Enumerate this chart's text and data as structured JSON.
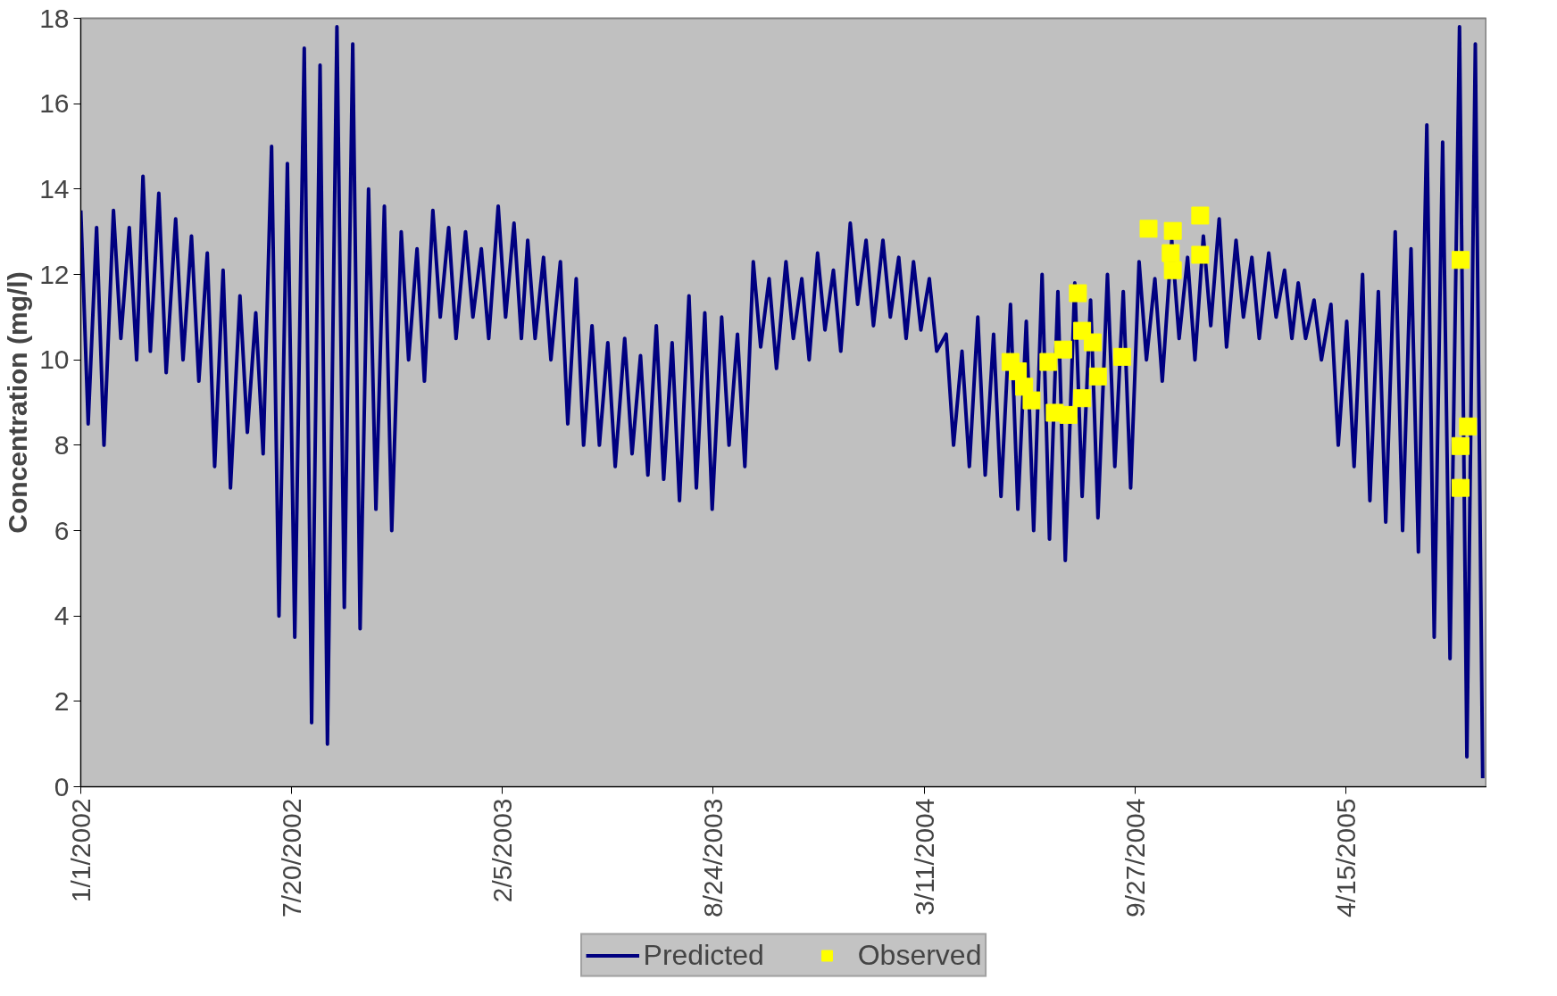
{
  "chart_data": {
    "type": "line",
    "ylabel": "Concentration (mg/l)",
    "xlim": [
      "2002-01-01",
      "2005-08-27"
    ],
    "xticks": [
      {
        "value": "2002-01-01",
        "label": "1/1/2002"
      },
      {
        "value": "2002-07-20",
        "label": "7/20/2002"
      },
      {
        "value": "2003-02-05",
        "label": "2/5/2003"
      },
      {
        "value": "2003-08-24",
        "label": "8/24/2003"
      },
      {
        "value": "2004-03-11",
        "label": "3/11/2004"
      },
      {
        "value": "2004-09-27",
        "label": "9/27/2004"
      },
      {
        "value": "2005-04-15",
        "label": "4/15/2005"
      }
    ],
    "ylim": [
      0,
      18
    ],
    "yticks": [
      0,
      2,
      4,
      6,
      8,
      10,
      12,
      14,
      16,
      18
    ],
    "grid": false,
    "legend": "bottom",
    "series": [
      {
        "name": "Predicted",
        "type": "line",
        "color": "#000080",
        "line_style": "solid",
        "x": [
          "2002-01-01",
          "2002-01-08",
          "2002-01-16",
          "2002-01-23",
          "2002-02-01",
          "2002-02-08",
          "2002-02-16",
          "2002-02-23",
          "2002-03-01",
          "2002-03-08",
          "2002-03-16",
          "2002-03-23",
          "2002-04-01",
          "2002-04-08",
          "2002-04-16",
          "2002-04-23",
          "2002-05-01",
          "2002-05-08",
          "2002-05-16",
          "2002-05-23",
          "2002-06-01",
          "2002-06-08",
          "2002-06-16",
          "2002-06-23",
          "2002-07-01",
          "2002-07-08",
          "2002-07-16",
          "2002-07-23",
          "2002-08-01",
          "2002-08-08",
          "2002-08-16",
          "2002-08-23",
          "2002-09-01",
          "2002-09-08",
          "2002-09-16",
          "2002-09-23",
          "2002-10-01",
          "2002-10-08",
          "2002-10-16",
          "2002-10-23",
          "2002-11-01",
          "2002-11-08",
          "2002-11-16",
          "2002-11-23",
          "2002-12-01",
          "2002-12-08",
          "2002-12-16",
          "2002-12-23",
          "2003-01-01",
          "2003-01-08",
          "2003-01-16",
          "2003-01-23",
          "2003-02-01",
          "2003-02-08",
          "2003-02-16",
          "2003-02-23",
          "2003-03-01",
          "2003-03-08",
          "2003-03-16",
          "2003-03-23",
          "2003-04-01",
          "2003-04-08",
          "2003-04-16",
          "2003-04-23",
          "2003-05-01",
          "2003-05-08",
          "2003-05-16",
          "2003-05-23",
          "2003-06-01",
          "2003-06-08",
          "2003-06-16",
          "2003-06-23",
          "2003-07-01",
          "2003-07-08",
          "2003-07-16",
          "2003-07-23",
          "2003-08-01",
          "2003-08-08",
          "2003-08-16",
          "2003-08-23",
          "2003-09-01",
          "2003-09-08",
          "2003-09-16",
          "2003-09-23",
          "2003-10-01",
          "2003-10-08",
          "2003-10-16",
          "2003-10-23",
          "2003-11-01",
          "2003-11-08",
          "2003-11-16",
          "2003-11-23",
          "2003-12-01",
          "2003-12-08",
          "2003-12-16",
          "2003-12-23",
          "2004-01-01",
          "2004-01-08",
          "2004-01-16",
          "2004-01-23",
          "2004-02-01",
          "2004-02-08",
          "2004-02-16",
          "2004-02-23",
          "2004-03-01",
          "2004-03-08",
          "2004-03-16",
          "2004-03-23",
          "2004-04-01",
          "2004-04-08",
          "2004-04-16",
          "2004-04-23",
          "2004-05-01",
          "2004-05-08",
          "2004-05-16",
          "2004-05-23",
          "2004-06-01",
          "2004-06-08",
          "2004-06-16",
          "2004-06-23",
          "2004-07-01",
          "2004-07-08",
          "2004-07-16",
          "2004-07-23",
          "2004-08-01",
          "2004-08-08",
          "2004-08-16",
          "2004-08-23",
          "2004-09-01",
          "2004-09-08",
          "2004-09-16",
          "2004-09-23",
          "2004-10-01",
          "2004-10-08",
          "2004-10-16",
          "2004-10-23",
          "2004-11-01",
          "2004-11-08",
          "2004-11-16",
          "2004-11-23",
          "2004-12-01",
          "2004-12-08",
          "2004-12-16",
          "2004-12-23",
          "2005-01-01",
          "2005-01-08",
          "2005-01-16",
          "2005-01-23",
          "2005-02-01",
          "2005-02-08",
          "2005-02-16",
          "2005-02-23",
          "2005-03-01",
          "2005-03-08",
          "2005-03-16",
          "2005-03-23",
          "2005-04-01",
          "2005-04-08",
          "2005-04-16",
          "2005-04-23",
          "2005-05-01",
          "2005-05-08",
          "2005-05-16",
          "2005-05-23",
          "2005-06-01",
          "2005-06-08",
          "2005-06-16",
          "2005-06-23",
          "2005-07-01",
          "2005-07-08",
          "2005-07-16",
          "2005-07-23",
          "2005-08-01",
          "2005-08-08",
          "2005-08-16",
          "2005-08-23"
        ],
        "values": [
          13.5,
          8.5,
          13.1,
          8,
          13.5,
          10.5,
          13.1,
          10,
          14.3,
          10.2,
          13.9,
          9.7,
          13.3,
          10,
          12.9,
          9.5,
          12.5,
          7.5,
          12.1,
          7,
          11.5,
          8.3,
          11.1,
          7.8,
          15,
          4,
          14.6,
          3.5,
          17.3,
          1.5,
          16.9,
          1,
          17.8,
          4.2,
          17.4,
          3.7,
          14,
          6.5,
          13.6,
          6,
          13,
          10,
          12.6,
          9.5,
          13.5,
          11,
          13.1,
          10.5,
          13,
          11,
          12.6,
          10.5,
          13.6,
          11,
          13.2,
          10.5,
          12.8,
          10.5,
          12.4,
          10,
          12.3,
          8.5,
          11.9,
          8,
          10.8,
          8,
          10.4,
          7.5,
          10.5,
          7.8,
          10.1,
          7.3,
          10.8,
          7.2,
          10.4,
          6.7,
          11.5,
          7,
          11.1,
          6.5,
          11,
          8,
          10.6,
          7.5,
          12.3,
          10.3,
          11.9,
          9.8,
          12.3,
          10.5,
          11.9,
          10,
          12.5,
          10.7,
          12.1,
          10.2,
          13.2,
          11.3,
          12.8,
          10.8,
          12.8,
          11,
          12.4,
          10.5,
          12.3,
          10.7,
          11.9,
          10.2,
          10.6,
          8,
          10.2,
          7.5,
          11,
          7.3,
          10.6,
          6.8,
          11.3,
          6.5,
          10.9,
          6,
          12,
          5.8,
          11.6,
          5.3,
          11.8,
          6.8,
          11.4,
          6.3,
          12,
          7.5,
          11.6,
          7,
          12.3,
          10,
          11.9,
          9.5,
          12.8,
          10.5,
          12.4,
          10,
          12.9,
          10.8,
          13.3,
          10.3,
          12.8,
          11,
          12.4,
          10.5,
          12.5,
          11,
          12.1,
          10.5,
          11.8,
          10.5,
          11.4,
          10,
          11.3,
          8,
          10.9,
          7.5,
          12,
          6.7,
          11.6,
          6.2,
          13,
          6,
          12.6,
          5.5,
          15.5,
          3.5,
          15.1,
          3,
          17.8,
          0.7,
          17.4,
          0.2
        ]
      },
      {
        "name": "Observed",
        "type": "scatter",
        "color": "#ffff00",
        "marker": "square",
        "x": [
          "2004-06-01",
          "2004-06-08",
          "2004-06-14",
          "2004-06-21",
          "2004-07-07",
          "2004-07-13",
          "2004-07-21",
          "2004-07-26",
          "2004-08-04",
          "2004-08-08",
          "2004-08-08",
          "2004-08-18",
          "2004-08-23",
          "2004-09-15",
          "2004-10-10",
          "2004-11-02",
          "2004-10-31",
          "2004-11-02",
          "2004-11-28",
          "2004-11-28",
          "2005-08-02",
          "2005-08-09",
          "2005-08-02",
          "2005-08-02"
        ],
        "values": [
          9.95,
          9.73,
          9.37,
          9.05,
          9.95,
          8.76,
          10.24,
          8.71,
          11.56,
          10.68,
          9.1,
          10.41,
          9.61,
          10.07,
          13.07,
          13.02,
          12.5,
          12.1,
          13.38,
          12.46,
          12.34,
          8.44,
          7.98,
          7.0
        ]
      }
    ]
  }
}
